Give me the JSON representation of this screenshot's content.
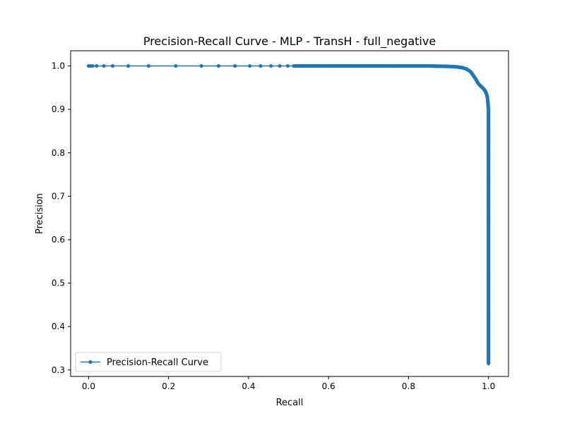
{
  "chart_data": {
    "type": "line",
    "title": "Precision-Recall Curve - MLP - TransH - full_negative",
    "xlabel": "Recall",
    "ylabel": "Precision",
    "xlim": [
      -0.045,
      1.05
    ],
    "ylim": [
      0.285,
      1.035
    ],
    "x_ticks": [
      0.0,
      0.2,
      0.4,
      0.6,
      0.8,
      1.0
    ],
    "x_tick_labels": [
      "0.0",
      "0.2",
      "0.4",
      "0.6",
      "0.8",
      "1.0"
    ],
    "y_ticks": [
      0.3,
      0.4,
      0.5,
      0.6,
      0.7,
      0.8,
      0.9,
      1.0
    ],
    "y_tick_labels": [
      "0.3",
      "0.4",
      "0.5",
      "0.6",
      "0.7",
      "0.8",
      "0.9",
      "1.0"
    ],
    "grid": false,
    "legend_position": "lower-left",
    "series": [
      {
        "name": "Precision-Recall Curve",
        "color": "#1f77b4",
        "marker": "circle",
        "x": [
          0.0,
          0.005,
          0.01,
          0.02,
          0.038,
          0.06,
          0.099,
          0.15,
          0.218,
          0.282,
          0.325,
          0.366,
          0.403,
          0.43,
          0.456,
          0.478,
          0.498,
          0.513,
          0.525,
          0.54,
          0.56,
          0.6,
          0.65,
          0.7,
          0.75,
          0.8,
          0.85,
          0.9,
          0.92,
          0.935,
          0.945,
          0.955,
          0.962,
          0.968,
          0.972,
          0.976,
          0.98,
          0.985,
          0.99,
          0.993,
          0.996,
          0.998,
          0.999,
          1.0,
          1.0,
          1.0,
          1.0,
          1.0,
          1.0,
          1.0,
          1.0,
          1.0
        ],
        "y": [
          1.0,
          1.0,
          1.0,
          1.0,
          1.0,
          1.0,
          1.0,
          1.0,
          1.0,
          1.0,
          1.0,
          1.0,
          1.0,
          1.0,
          1.0,
          1.0,
          1.0,
          1.0,
          1.0,
          1.0,
          1.0,
          1.0,
          1.0,
          1.0,
          1.0,
          1.0,
          1.0,
          0.999,
          0.998,
          0.996,
          0.993,
          0.987,
          0.978,
          0.97,
          0.963,
          0.958,
          0.954,
          0.95,
          0.945,
          0.94,
          0.933,
          0.922,
          0.91,
          0.9,
          0.8,
          0.7,
          0.6,
          0.5,
          0.4,
          0.35,
          0.32,
          0.315
        ]
      }
    ]
  }
}
